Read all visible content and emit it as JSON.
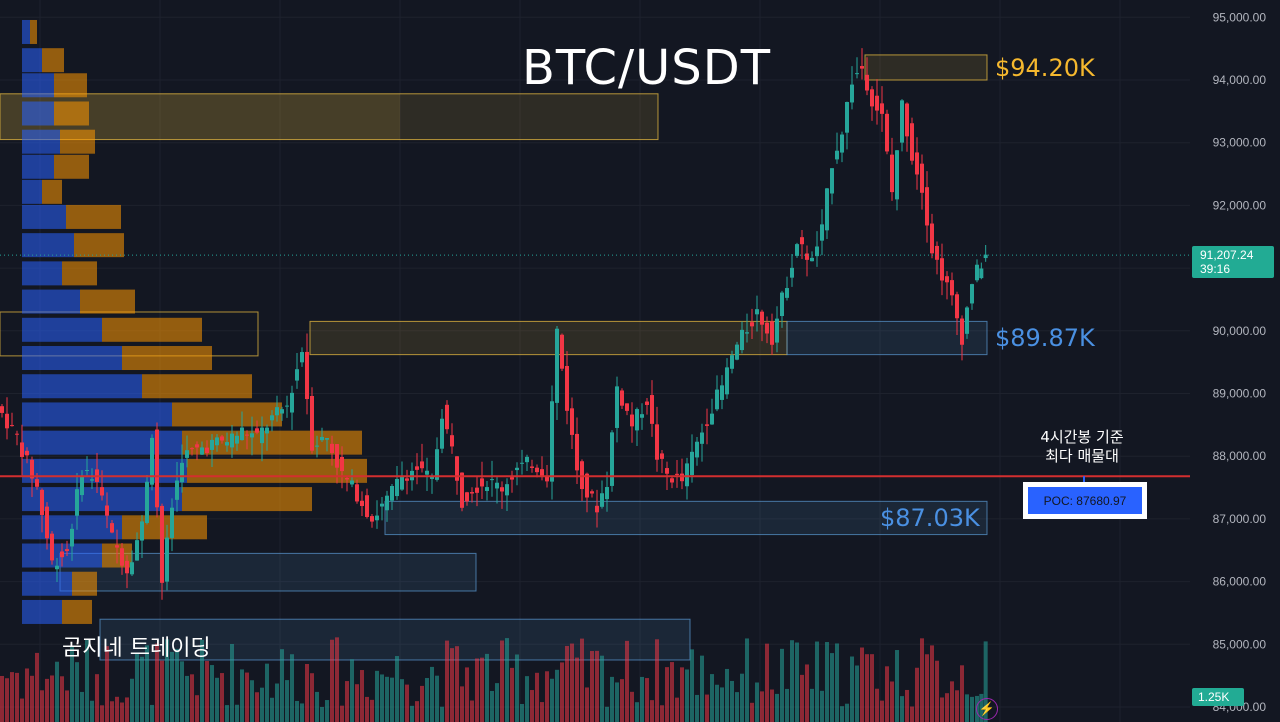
{
  "title": "BTC/USDT",
  "watermark": "곰지네 트레이딩",
  "colors": {
    "up": "#26a69a",
    "down": "#f23645",
    "background": "#131722",
    "poc_line": "#d32f2f",
    "vp_up": "#2962ff",
    "vp_down": "#ff9800",
    "zone_yellow": "#f5c542",
    "zone_blue": "#5b9bd5"
  },
  "price_labels": {
    "current_price": "91,207.24",
    "countdown": "39:16",
    "volume": "1.25K"
  },
  "annotations": {
    "resistance": "$94.20K",
    "support_high": "$89.87K",
    "support_low": "$87.03K",
    "poc_note_line1": "4시간봉 기준",
    "poc_note_line2": "최다 매물대",
    "poc": "POC: 87680.97"
  },
  "icons": {
    "lightning": "lightning-icon"
  },
  "chart_data": {
    "type": "candlestick",
    "title": "BTC/USDT",
    "y_axis": {
      "ticks": [
        95000,
        94000,
        93000,
        92000,
        91000,
        90000,
        89000,
        88000,
        87000,
        86000,
        85000,
        84000
      ],
      "tick_labels": [
        "95,000.00",
        "94,000.00",
        "93,000.00",
        "92,000.00",
        "91,000.00",
        "90,000.00",
        "89,000.00",
        "88,000.00",
        "87,000.00",
        "86,000.00",
        "85,000.00",
        "84,000.00"
      ],
      "ylim": [
        84000,
        95000
      ],
      "position": "right"
    },
    "current_price": 91207.24,
    "poc_price": 87680.97,
    "zones": [
      {
        "name": "resistance",
        "low": 94000,
        "high": 94400,
        "color": "yellow"
      },
      {
        "name": "upper-volume-zone",
        "low": 93050,
        "high": 93780,
        "color": "yellow"
      },
      {
        "name": "mid-volume-zone",
        "low": 89620,
        "high": 90150,
        "color": "yellow"
      },
      {
        "name": "support-high",
        "low": 89620,
        "high": 90150,
        "color": "blue"
      },
      {
        "name": "support-low",
        "low": 86750,
        "high": 87280,
        "color": "blue"
      },
      {
        "name": "lower-zone-1",
        "low": 85850,
        "high": 86450,
        "color": "blue"
      },
      {
        "name": "lower-zone-2",
        "low": 84750,
        "high": 85400,
        "color": "blue"
      }
    ],
    "volume_profile": [
      {
        "price": 94750,
        "up": 8,
        "down": 7
      },
      {
        "price": 94300,
        "up": 20,
        "down": 22
      },
      {
        "price": 93900,
        "up": 32,
        "down": 33
      },
      {
        "price": 93450,
        "up": 32,
        "down": 35
      },
      {
        "price": 93000,
        "up": 38,
        "down": 35
      },
      {
        "price": 92600,
        "up": 32,
        "down": 35
      },
      {
        "price": 92200,
        "up": 20,
        "down": 20
      },
      {
        "price": 91800,
        "up": 44,
        "down": 55
      },
      {
        "price": 91350,
        "up": 52,
        "down": 50
      },
      {
        "price": 90900,
        "up": 40,
        "down": 35
      },
      {
        "price": 90450,
        "up": 58,
        "down": 55
      },
      {
        "price": 90000,
        "up": 80,
        "down": 100
      },
      {
        "price": 89550,
        "up": 100,
        "down": 90
      },
      {
        "price": 89100,
        "up": 120,
        "down": 110
      },
      {
        "price": 88650,
        "up": 150,
        "down": 110
      },
      {
        "price": 88200,
        "up": 160,
        "down": 180
      },
      {
        "price": 87750,
        "up": 165,
        "down": 180
      },
      {
        "price": 87300,
        "up": 160,
        "down": 130
      },
      {
        "price": 86850,
        "up": 100,
        "down": 85
      },
      {
        "price": 86400,
        "up": 80,
        "down": 30
      },
      {
        "price": 85950,
        "up": 50,
        "down": 25
      },
      {
        "price": 85500,
        "up": 40,
        "down": 30
      }
    ]
  }
}
